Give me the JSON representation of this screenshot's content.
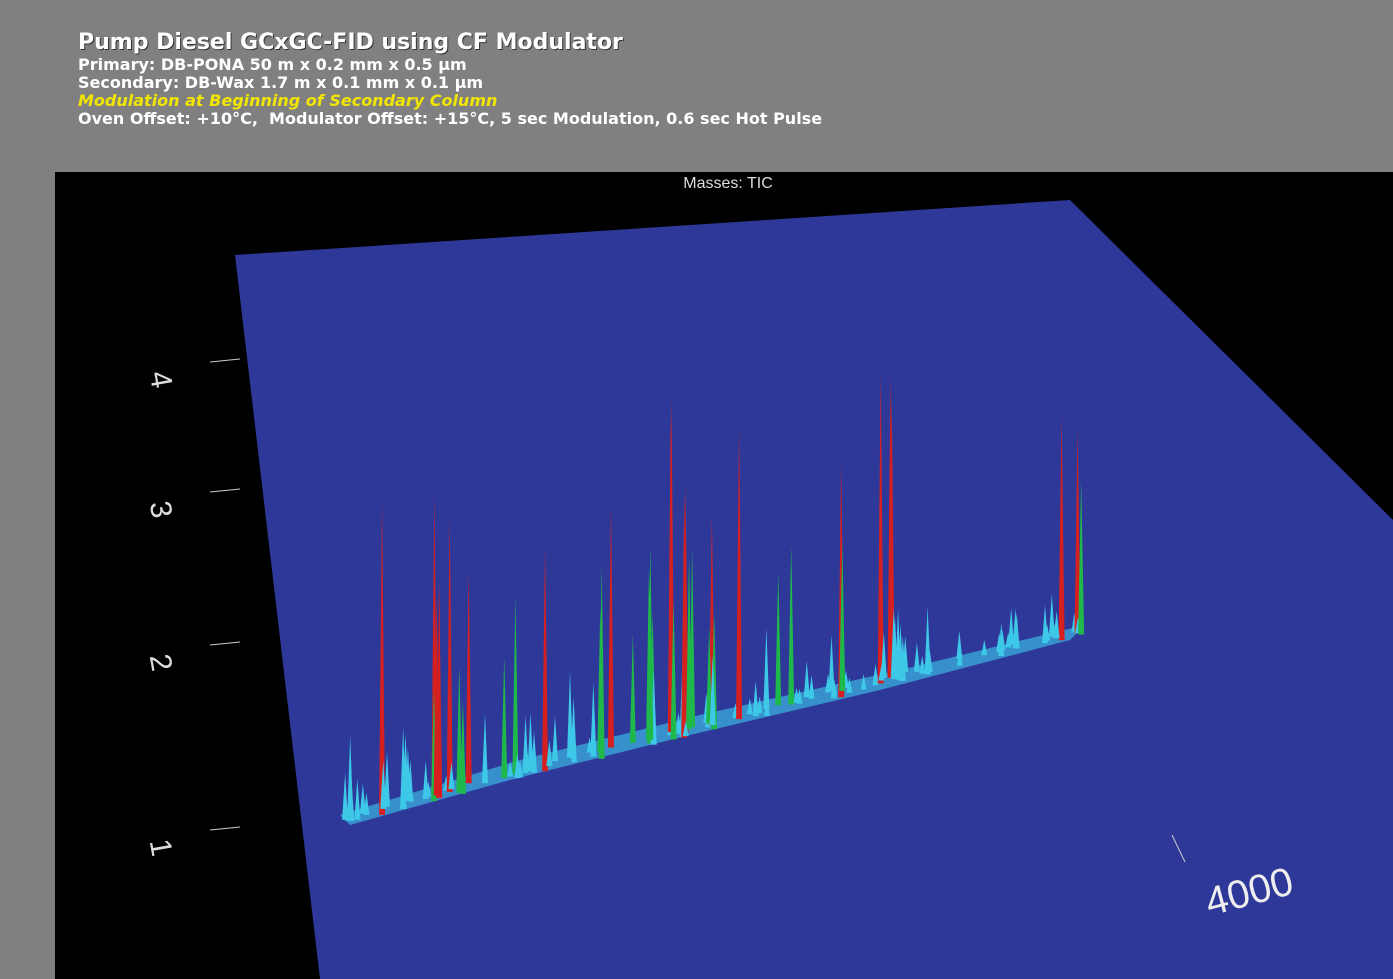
{
  "header": {
    "title": "Pump Diesel GCxGC-FID using CF Modulator",
    "lines": [
      "Primary: DB-PONA 50 m x 0.2 mm x 0.5 µm",
      "Secondary: DB-Wax 1.7 m x 0.1 mm x 0.1 µm",
      "Modulation at Beginning of Secondary Column",
      "Oven Offset: +10°C,  Modulator Offset: +15°C, 5 sec Modulation, 0.6 sec Hot Pulse"
    ]
  },
  "chart_data": {
    "type": "surface3d",
    "title": "Masses: TIC",
    "yticks": [
      1,
      2,
      3,
      4
    ],
    "xticks": [
      4000
    ]
  }
}
